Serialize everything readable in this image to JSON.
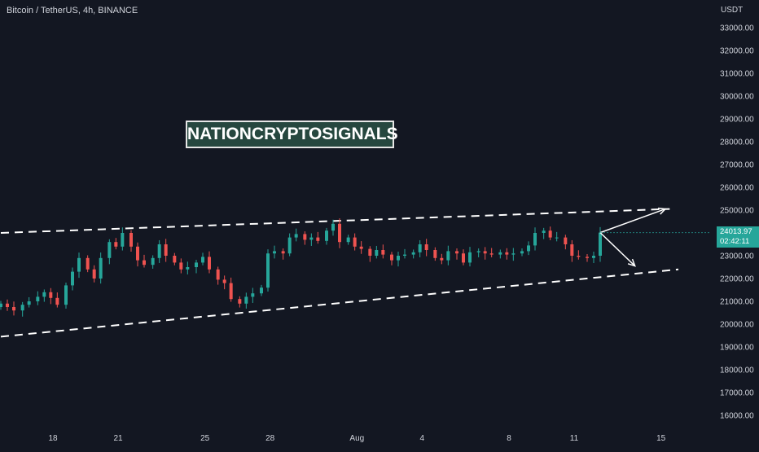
{
  "header": {
    "symbol": "Bitcoin / TetherUS, 4h, BINANCE"
  },
  "watermark": {
    "text": "NATIONCRYPTOSIGNALS"
  },
  "price_axis": {
    "unit": "USDT"
  },
  "last_price": {
    "value": "24013.97",
    "countdown": "02:42:11"
  },
  "colors": {
    "background": "#131722",
    "up": "#26a69a",
    "down": "#ef5350",
    "trendline": "#ffffff",
    "text": "#d1d4dc"
  },
  "chart_data": {
    "type": "candlestick",
    "title": "Bitcoin / TetherUS, 4h, BINANCE",
    "ylabel": "USDT",
    "ylim": [
      15500,
      34000
    ],
    "y_ticks": [
      "33000.00",
      "32000.00",
      "31000.00",
      "30000.00",
      "29000.00",
      "28000.00",
      "27000.00",
      "26000.00",
      "25000.00",
      "24000.00",
      "23000.00",
      "22000.00",
      "21000.00",
      "20000.00",
      "19000.00",
      "18000.00",
      "17000.00",
      "16000.00"
    ],
    "x_ticks": [
      "18",
      "21",
      "25",
      "28",
      "Aug",
      "4",
      "8",
      "11",
      "15"
    ],
    "x_tick_day": [
      18,
      21,
      25,
      28,
      32,
      35,
      39,
      42,
      46
    ],
    "x_range_day": [
      15.6,
      49.6
    ],
    "candles": [
      {
        "d": 15.6,
        "c": 20900
      },
      {
        "d": 15.9,
        "c": 20750
      },
      {
        "d": 16.2,
        "c": 20600
      },
      {
        "d": 16.6,
        "c": 20850
      },
      {
        "d": 16.9,
        "c": 21000
      },
      {
        "d": 17.3,
        "c": 21200
      },
      {
        "d": 17.6,
        "c": 21400
      },
      {
        "d": 17.9,
        "c": 21150
      },
      {
        "d": 18.2,
        "c": 20850
      },
      {
        "d": 18.6,
        "c": 21700
      },
      {
        "d": 18.9,
        "c": 22300
      },
      {
        "d": 19.2,
        "c": 22900
      },
      {
        "d": 19.6,
        "c": 22400
      },
      {
        "d": 19.9,
        "c": 22000
      },
      {
        "d": 20.2,
        "c": 22900
      },
      {
        "d": 20.6,
        "c": 23600
      },
      {
        "d": 20.9,
        "c": 23400
      },
      {
        "d": 21.2,
        "c": 24000
      },
      {
        "d": 21.6,
        "c": 23400
      },
      {
        "d": 21.9,
        "c": 22800
      },
      {
        "d": 22.2,
        "c": 22600
      },
      {
        "d": 22.6,
        "c": 22900
      },
      {
        "d": 22.9,
        "c": 23500
      },
      {
        "d": 23.2,
        "c": 23000
      },
      {
        "d": 23.6,
        "c": 22700
      },
      {
        "d": 23.9,
        "c": 22400
      },
      {
        "d": 24.2,
        "c": 22500
      },
      {
        "d": 24.6,
        "c": 22700
      },
      {
        "d": 24.9,
        "c": 22950
      },
      {
        "d": 25.2,
        "c": 22400
      },
      {
        "d": 25.6,
        "c": 21950
      },
      {
        "d": 25.9,
        "c": 21800
      },
      {
        "d": 26.2,
        "c": 21100
      },
      {
        "d": 26.6,
        "c": 20900
      },
      {
        "d": 26.9,
        "c": 21200
      },
      {
        "d": 27.2,
        "c": 21350
      },
      {
        "d": 27.6,
        "c": 21600
      },
      {
        "d": 27.9,
        "c": 23100
      },
      {
        "d": 28.2,
        "c": 23200
      },
      {
        "d": 28.6,
        "c": 23100
      },
      {
        "d": 28.9,
        "c": 23800
      },
      {
        "d": 29.2,
        "c": 23950
      },
      {
        "d": 29.6,
        "c": 23700
      },
      {
        "d": 29.9,
        "c": 23800
      },
      {
        "d": 30.2,
        "c": 23650
      },
      {
        "d": 30.6,
        "c": 24100
      },
      {
        "d": 30.9,
        "c": 24400
      },
      {
        "d": 31.2,
        "c": 23600
      },
      {
        "d": 31.6,
        "c": 23800
      },
      {
        "d": 31.9,
        "c": 23400
      },
      {
        "d": 32.2,
        "c": 23300
      },
      {
        "d": 32.6,
        "c": 23000
      },
      {
        "d": 32.9,
        "c": 23250
      },
      {
        "d": 33.2,
        "c": 23050
      },
      {
        "d": 33.6,
        "c": 22800
      },
      {
        "d": 33.9,
        "c": 23000
      },
      {
        "d": 34.2,
        "c": 23050
      },
      {
        "d": 34.6,
        "c": 23150
      },
      {
        "d": 34.9,
        "c": 23500
      },
      {
        "d": 35.2,
        "c": 23250
      },
      {
        "d": 35.6,
        "c": 22900
      },
      {
        "d": 35.9,
        "c": 22800
      },
      {
        "d": 36.2,
        "c": 23200
      },
      {
        "d": 36.6,
        "c": 23100
      },
      {
        "d": 36.9,
        "c": 22700
      },
      {
        "d": 37.2,
        "c": 23150
      },
      {
        "d": 37.6,
        "c": 23200
      },
      {
        "d": 37.9,
        "c": 23100
      },
      {
        "d": 38.2,
        "c": 23050
      },
      {
        "d": 38.6,
        "c": 23150
      },
      {
        "d": 38.9,
        "c": 23050
      },
      {
        "d": 39.2,
        "c": 23100
      },
      {
        "d": 39.6,
        "c": 23200
      },
      {
        "d": 39.9,
        "c": 23450
      },
      {
        "d": 40.2,
        "c": 24000
      },
      {
        "d": 40.6,
        "c": 24100
      },
      {
        "d": 40.9,
        "c": 23800
      },
      {
        "d": 41.2,
        "c": 23800
      },
      {
        "d": 41.6,
        "c": 23500
      },
      {
        "d": 41.9,
        "c": 23000
      },
      {
        "d": 42.2,
        "c": 22950
      },
      {
        "d": 42.6,
        "c": 22900
      },
      {
        "d": 42.9,
        "c": 23000
      },
      {
        "d": 43.2,
        "c": 24013.97
      }
    ],
    "trendlines": [
      {
        "name": "upper channel",
        "style": "dashed",
        "from": {
          "d": 15.6,
          "p": 24000
        },
        "to": {
          "d": 46.4,
          "p": 25050
        }
      },
      {
        "name": "lower channel",
        "style": "dashed",
        "from": {
          "d": 15.6,
          "p": 19450
        },
        "to": {
          "d": 46.8,
          "p": 22400
        }
      }
    ],
    "arrows": [
      {
        "from": {
          "d": 43.2,
          "p": 24013.97
        },
        "to": {
          "d": 46.2,
          "p": 25050
        }
      },
      {
        "from": {
          "d": 43.2,
          "p": 24013.97
        },
        "to": {
          "d": 44.8,
          "p": 22550
        }
      }
    ]
  }
}
